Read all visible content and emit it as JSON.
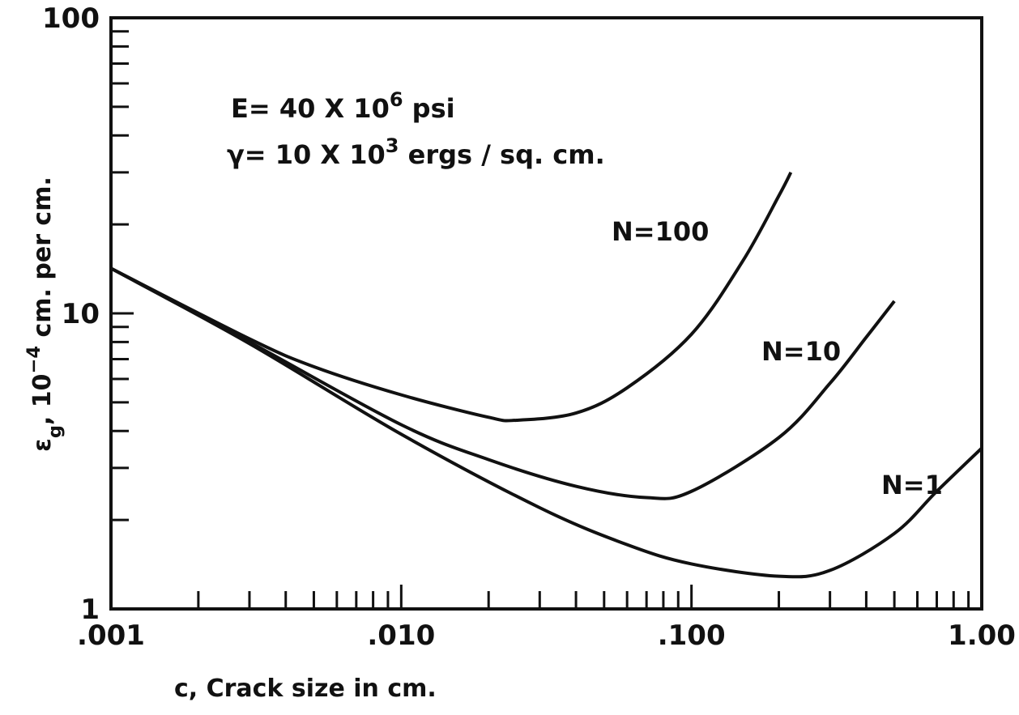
{
  "chart_data": {
    "type": "line",
    "log_x": true,
    "log_y": true,
    "xlabel": "c, Crack size in cm.",
    "ylabel": [
      {
        "t": "ε"
      },
      {
        "t": "g",
        "shift": "sub"
      },
      {
        "t": ", 10"
      },
      {
        "t": "−4",
        "shift": "super"
      },
      {
        "t": " cm. per cm."
      }
    ],
    "annotations": [
      [
        {
          "t": "E= 40 X 10"
        },
        {
          "t": "6",
          "shift": "super"
        },
        {
          "t": " psi"
        }
      ],
      [
        {
          "t": "γ= 10 X 10"
        },
        {
          "t": "3",
          "shift": "super"
        },
        {
          "t": " ergs / sq. cm."
        }
      ]
    ],
    "xlim": [
      0.001,
      1
    ],
    "ylim": [
      1,
      100
    ],
    "xticks": [
      {
        "value": 0.001,
        "label": ".001"
      },
      {
        "value": 0.01,
        "label": ".010"
      },
      {
        "value": 0.1,
        "label": ".100"
      },
      {
        "value": 1,
        "label": "1.00"
      }
    ],
    "xticks_minor": [
      0.002,
      0.003,
      0.004,
      0.005,
      0.006,
      0.007,
      0.008,
      0.009,
      0.02,
      0.03,
      0.04,
      0.05,
      0.06,
      0.07,
      0.08,
      0.09,
      0.2,
      0.3,
      0.4,
      0.5,
      0.6,
      0.7,
      0.8,
      0.9
    ],
    "yticks": [
      1,
      10,
      100
    ],
    "yticks_minor": [
      2,
      3,
      4,
      5,
      6,
      7,
      8,
      9,
      20,
      30,
      40,
      50,
      60,
      70,
      80,
      90
    ],
    "series": [
      {
        "name": "N=100",
        "color": "#111111",
        "x": [
          0.001,
          0.003,
          0.005,
          0.01,
          0.02,
          0.025,
          0.04,
          0.06,
          0.1,
          0.15,
          0.2,
          0.22
        ],
        "values": [
          14.2,
          8.2,
          6.6,
          5.3,
          4.45,
          4.35,
          4.6,
          5.6,
          8.5,
          15,
          25,
          30
        ]
      },
      {
        "name": "N=10",
        "color": "#111111",
        "x": [
          0.001,
          0.003,
          0.01,
          0.02,
          0.04,
          0.07,
          0.1,
          0.2,
          0.3,
          0.4,
          0.5
        ],
        "values": [
          14.2,
          8.0,
          4.2,
          3.2,
          2.6,
          2.38,
          2.5,
          3.8,
          5.8,
          8.3,
          11
        ]
      },
      {
        "name": "N=1",
        "color": "#111111",
        "x": [
          0.001,
          0.003,
          0.01,
          0.03,
          0.06,
          0.1,
          0.2,
          0.3,
          0.5,
          0.7,
          1.0
        ],
        "values": [
          14.2,
          7.9,
          3.9,
          2.2,
          1.65,
          1.42,
          1.29,
          1.35,
          1.8,
          2.5,
          3.5
        ]
      }
    ]
  }
}
